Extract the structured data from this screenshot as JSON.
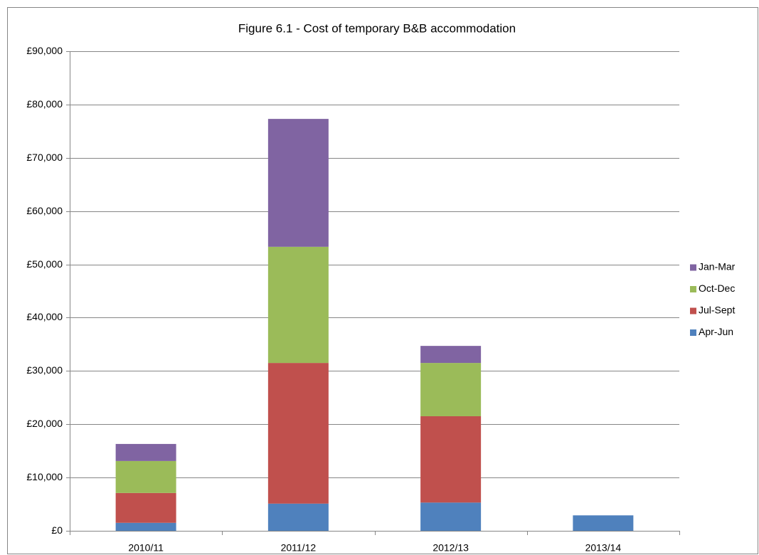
{
  "chart_data": {
    "type": "stacked_bar",
    "title": "Figure 6.1 - Cost of temporary B&B accommodation",
    "categories": [
      "2010/11",
      "2011/12",
      "2012/13",
      "2013/14"
    ],
    "series": [
      {
        "name": "Apr-Jun",
        "color": "#4f81bd",
        "values": [
          1500,
          5100,
          5300,
          2900
        ]
      },
      {
        "name": "Jul-Sept",
        "color": "#c0504d",
        "values": [
          5600,
          26400,
          16200,
          null
        ]
      },
      {
        "name": "Oct-Dec",
        "color": "#9bbb59",
        "values": [
          6000,
          21800,
          10000,
          null
        ]
      },
      {
        "name": "Jan-Mar",
        "color": "#8064a2",
        "values": [
          3200,
          24000,
          3200,
          null
        ]
      }
    ],
    "ylim": [
      0,
      90000
    ],
    "yticks": [
      {
        "value": 0,
        "label": "£0"
      },
      {
        "value": 10000,
        "label": "£10,000"
      },
      {
        "value": 20000,
        "label": "£20,000"
      },
      {
        "value": 30000,
        "label": "£30,000"
      },
      {
        "value": 40000,
        "label": "£40,000"
      },
      {
        "value": 50000,
        "label": "£50,000"
      },
      {
        "value": 60000,
        "label": "£60,000"
      },
      {
        "value": 70000,
        "label": "£70,000"
      },
      {
        "value": 80000,
        "label": "£80,000"
      },
      {
        "value": 90000,
        "label": "£90,000"
      }
    ],
    "grid": true,
    "legend": "right"
  }
}
